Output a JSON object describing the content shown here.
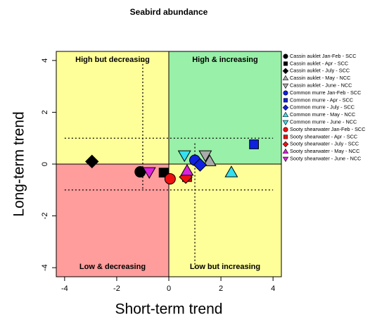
{
  "chart_data": {
    "type": "scatter",
    "title": "Seabird abundance",
    "x_label": "Short-term trend",
    "y_label": "Long-term trend",
    "xlim": [
      -4.32,
      4.32
    ],
    "ylim": [
      -4.35,
      4.35
    ],
    "xticks": [
      -4,
      -2,
      0,
      2,
      4
    ],
    "yticks": [
      -4,
      -2,
      0,
      2,
      4
    ],
    "quadrants": [
      {
        "label": "High but decreasing",
        "color": "#ffff99"
      },
      {
        "label": "High & increasing",
        "color": "#99f0a8"
      },
      {
        "label": "Low & decreasing",
        "color": "#ff9c9c"
      },
      {
        "label": "Low but increasing",
        "color": "#ffff99"
      }
    ],
    "dotted_lines": [
      {
        "x": [
          -1,
          -1
        ],
        "y": [
          4,
          -1
        ]
      },
      {
        "x": [
          1,
          1
        ],
        "y": [
          0.8,
          -4
        ]
      },
      {
        "x": [
          -4,
          4
        ],
        "y": [
          1,
          1
        ]
      },
      {
        "x": [
          -4,
          4
        ],
        "y": [
          -1,
          -1
        ]
      }
    ],
    "series": [
      {
        "name": "Cassin auklet Jan-Feb - SCC",
        "color": "#000000",
        "marker": "circle",
        "x": [
          -1.1
        ],
        "values": [
          -0.3
        ]
      },
      {
        "name": "Cassin auklet   - Apr - SCC",
        "color": "#000000",
        "marker": "square",
        "x": [
          -0.2
        ],
        "values": [
          -0.33
        ]
      },
      {
        "name": "Cassin auklet - July - SCC",
        "color": "#000000",
        "marker": "diamond",
        "x": [
          -2.95
        ],
        "values": [
          0.1
        ]
      },
      {
        "name": "Cassin auklet - May - NCC",
        "color": "#aaaaaa",
        "marker": "triangle-up",
        "x": [
          1.57
        ],
        "values": [
          0.1
        ]
      },
      {
        "name": "Cassin auklet - June - NCC",
        "color": "#aaaaaa",
        "marker": "triangle-down",
        "x": [
          1.4
        ],
        "values": [
          0.35
        ]
      },
      {
        "name": "Common murre Jan-Feb - SCC",
        "color": "#1020e0",
        "marker": "circle",
        "x": [
          1.0
        ],
        "values": [
          0.15
        ]
      },
      {
        "name": "Common murre   - Apr - SCC",
        "color": "#1020e0",
        "marker": "square",
        "x": [
          3.27
        ],
        "values": [
          0.76
        ]
      },
      {
        "name": "Common murre - July - SCC",
        "color": "#1020e0",
        "marker": "diamond",
        "x": [
          1.2
        ],
        "values": [
          -0.03
        ]
      },
      {
        "name": "Common murre - May - NCC",
        "color": "#33e0f0",
        "marker": "triangle-up",
        "x": [
          2.4
        ],
        "values": [
          -0.33
        ]
      },
      {
        "name": "Common murre - June - NCC",
        "color": "#33e0f0",
        "marker": "triangle-down",
        "x": [
          0.6
        ],
        "values": [
          0.35
        ]
      },
      {
        "name": "Sooty shearwater Jan-Feb - SCC",
        "color": "#ee1111",
        "marker": "circle",
        "x": [
          0.05
        ],
        "values": [
          -0.57
        ]
      },
      {
        "name": "Sooty shearwater   - Apr - SCC",
        "color": "#ee1111",
        "marker": "square",
        "x": [
          0.7
        ],
        "values": [
          -0.5
        ]
      },
      {
        "name": "Sooty shearwater - July - SCC",
        "color": "#ee1111",
        "marker": "diamond",
        "x": [
          0.65
        ],
        "values": [
          -0.5
        ]
      },
      {
        "name": "Sooty shearwater - May - NCC",
        "color": "#dd22dd",
        "marker": "triangle-up",
        "x": [
          0.7
        ],
        "values": [
          -0.27
        ]
      },
      {
        "name": "Sooty shearwater - June - NCC",
        "color": "#dd22dd",
        "marker": "triangle-down",
        "x": [
          -0.75
        ],
        "values": [
          -0.3
        ]
      }
    ]
  }
}
